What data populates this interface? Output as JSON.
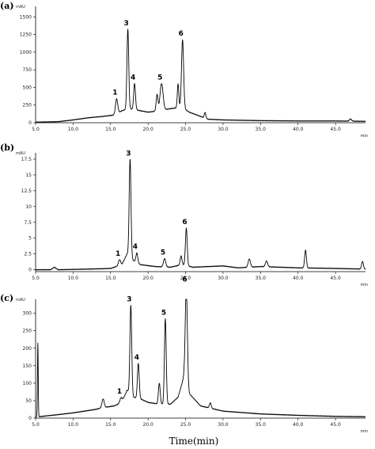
{
  "figure": {
    "xlabel": "Time(min)"
  },
  "chart_data": [
    {
      "type": "line",
      "panel_label": "(a)",
      "y_unit": "mAU",
      "x_unit": "min",
      "ylim": [
        0,
        1650
      ],
      "y_ticks": [
        0,
        250,
        500,
        750,
        1000,
        1250,
        1500
      ],
      "y_tick_labels": [
        "0",
        "250",
        "500",
        "750",
        "1000",
        "1250",
        "1500"
      ],
      "x_range": [
        5.0,
        49.0
      ],
      "x_ticks": [
        5.0,
        10.0,
        15.0,
        20.0,
        25.0,
        30.0,
        35.0,
        40.0,
        45.0
      ],
      "x_tick_labels": [
        "5.0",
        "10.0",
        "15.0",
        "20.0",
        "25.0",
        "30.0",
        "35.0",
        "40.0",
        "45.0"
      ],
      "baseline": [
        [
          5.0,
          8
        ],
        [
          8.0,
          15
        ],
        [
          10.0,
          40
        ],
        [
          12.0,
          70
        ],
        [
          14.0,
          90
        ],
        [
          15.5,
          110
        ],
        [
          16.5,
          170
        ],
        [
          17.5,
          200
        ],
        [
          18.5,
          180
        ],
        [
          20.0,
          150
        ],
        [
          21.5,
          170
        ],
        [
          23.0,
          200
        ],
        [
          24.5,
          220
        ],
        [
          25.5,
          150
        ],
        [
          27.0,
          90
        ],
        [
          28.0,
          50
        ],
        [
          30.0,
          40
        ],
        [
          35.0,
          30
        ],
        [
          40.0,
          25
        ],
        [
          45.0,
          25
        ],
        [
          49.0,
          20
        ]
      ],
      "peaks": [
        {
          "label": "1",
          "rt": 15.8,
          "height": 210,
          "width": 0.15
        },
        {
          "label": "3",
          "rt": 17.3,
          "height": 1130,
          "width": 0.12
        },
        {
          "label": "4",
          "rt": 18.2,
          "height": 370,
          "width": 0.12
        },
        {
          "label": "5",
          "rt": 21.8,
          "height": 380,
          "width": 0.2
        },
        {
          "label": "6",
          "rt": 24.6,
          "height": 960,
          "width": 0.14
        },
        {
          "label": "",
          "rt": 24.0,
          "height": 340,
          "width": 0.1
        },
        {
          "label": "",
          "rt": 21.2,
          "height": 230,
          "width": 0.12
        },
        {
          "label": "",
          "rt": 27.6,
          "height": 80,
          "width": 0.1
        },
        {
          "label": "",
          "rt": 47.0,
          "height": 30,
          "width": 0.15
        }
      ]
    },
    {
      "type": "line",
      "panel_label": "(b)",
      "y_unit": "mAU",
      "x_unit": "min",
      "ylim": [
        -0.3,
        18.5
      ],
      "y_ticks": [
        0,
        2.5,
        5,
        7.5,
        10,
        12.5,
        15,
        17.5
      ],
      "y_tick_labels": [
        "0",
        "2.5",
        "5",
        "7.5",
        "10",
        "12.5",
        "15",
        "17.5"
      ],
      "x_range": [
        5.0,
        49.0
      ],
      "x_ticks": [
        5.0,
        10.0,
        15.0,
        20.0,
        25.0,
        30.0,
        35.0,
        40.0,
        45.0
      ],
      "x_tick_labels": [
        "5.0",
        "10.0",
        "15.0",
        "20.0",
        "25.0",
        "30.0",
        "35.0",
        "40.0",
        "45.0"
      ],
      "baseline": [
        [
          5.0,
          0.0
        ],
        [
          7.0,
          0.0
        ],
        [
          7.5,
          0.4
        ],
        [
          8.0,
          0.0
        ],
        [
          12.0,
          0.1
        ],
        [
          15.0,
          0.2
        ],
        [
          16.5,
          0.8
        ],
        [
          17.2,
          2.5
        ],
        [
          18.0,
          1.5
        ],
        [
          19.0,
          0.8
        ],
        [
          21.0,
          0.5
        ],
        [
          23.0,
          0.4
        ],
        [
          24.5,
          0.8
        ],
        [
          26.0,
          0.4
        ],
        [
          30.0,
          0.6
        ],
        [
          32.0,
          0.3
        ],
        [
          35.0,
          0.5
        ],
        [
          40.0,
          0.3
        ],
        [
          45.0,
          0.2
        ],
        [
          49.0,
          0.1
        ]
      ],
      "peaks": [
        {
          "label": "1",
          "rt": 16.2,
          "height": 0.9,
          "width": 0.15
        },
        {
          "label": "3",
          "rt": 17.6,
          "height": 15.5,
          "width": 0.12
        },
        {
          "label": "4",
          "rt": 18.5,
          "height": 1.5,
          "width": 0.12
        },
        {
          "label": "5",
          "rt": 22.2,
          "height": 1.3,
          "width": 0.15
        },
        {
          "label": "6",
          "rt": 25.1,
          "height": 5.9,
          "width": 0.12
        },
        {
          "label": "",
          "rt": 24.4,
          "height": 1.4,
          "width": 0.12
        },
        {
          "label": "",
          "rt": 33.5,
          "height": 1.3,
          "width": 0.15
        },
        {
          "label": "",
          "rt": 35.8,
          "height": 0.9,
          "width": 0.15
        },
        {
          "label": "",
          "rt": 41.0,
          "height": 2.8,
          "width": 0.12
        },
        {
          "label": "",
          "rt": 48.6,
          "height": 1.2,
          "width": 0.12
        }
      ]
    },
    {
      "type": "line",
      "panel_label": "(c)",
      "y_unit": "mAU",
      "x_unit": "min",
      "ylim": [
        0,
        340
      ],
      "y_ticks": [
        0,
        50,
        100,
        150,
        200,
        250,
        300
      ],
      "y_tick_labels": [
        "0",
        "50",
        "100",
        "150",
        "200",
        "250",
        "300"
      ],
      "x_range": [
        5.0,
        49.0
      ],
      "x_ticks": [
        5.0,
        10.0,
        15.0,
        20.0,
        25.0,
        30.0,
        35.0,
        40.0,
        45.0
      ],
      "x_tick_labels": [
        "5.0",
        "10.0",
        "15.0",
        "20.0",
        "25.0",
        "30.0",
        "35.0",
        "40.0",
        "45.0"
      ],
      "baseline": [
        [
          5.0,
          3
        ],
        [
          8.0,
          10
        ],
        [
          10.0,
          15
        ],
        [
          13.0,
          25
        ],
        [
          14.0,
          30
        ],
        [
          15.5,
          35
        ],
        [
          16.5,
          45
        ],
        [
          17.2,
          80
        ],
        [
          18.0,
          60
        ],
        [
          19.0,
          55
        ],
        [
          20.0,
          45
        ],
        [
          21.5,
          40
        ],
        [
          23.0,
          40
        ],
        [
          24.0,
          60
        ],
        [
          24.8,
          120
        ],
        [
          25.5,
          70
        ],
        [
          27.0,
          35
        ],
        [
          30.0,
          20
        ],
        [
          35.0,
          12
        ],
        [
          40.0,
          8
        ],
        [
          45.0,
          5
        ],
        [
          49.0,
          4
        ]
      ],
      "peaks": [
        {
          "label": "",
          "rt": 5.3,
          "height": 210,
          "width": 0.05
        },
        {
          "label": "",
          "rt": 14.0,
          "height": 25,
          "width": 0.15
        },
        {
          "label": "1",
          "rt": 16.4,
          "height": 15,
          "width": 0.15
        },
        {
          "label": "3",
          "rt": 17.7,
          "height": 255,
          "width": 0.12
        },
        {
          "label": "4",
          "rt": 18.7,
          "height": 100,
          "width": 0.12
        },
        {
          "label": "5",
          "rt": 22.3,
          "height": 245,
          "width": 0.12
        },
        {
          "label": "6",
          "rt": 25.1,
          "height": 280,
          "width": 0.14
        },
        {
          "label": "",
          "rt": 21.5,
          "height": 60,
          "width": 0.12
        },
        {
          "label": "",
          "rt": 28.3,
          "height": 15,
          "width": 0.12
        }
      ]
    }
  ]
}
